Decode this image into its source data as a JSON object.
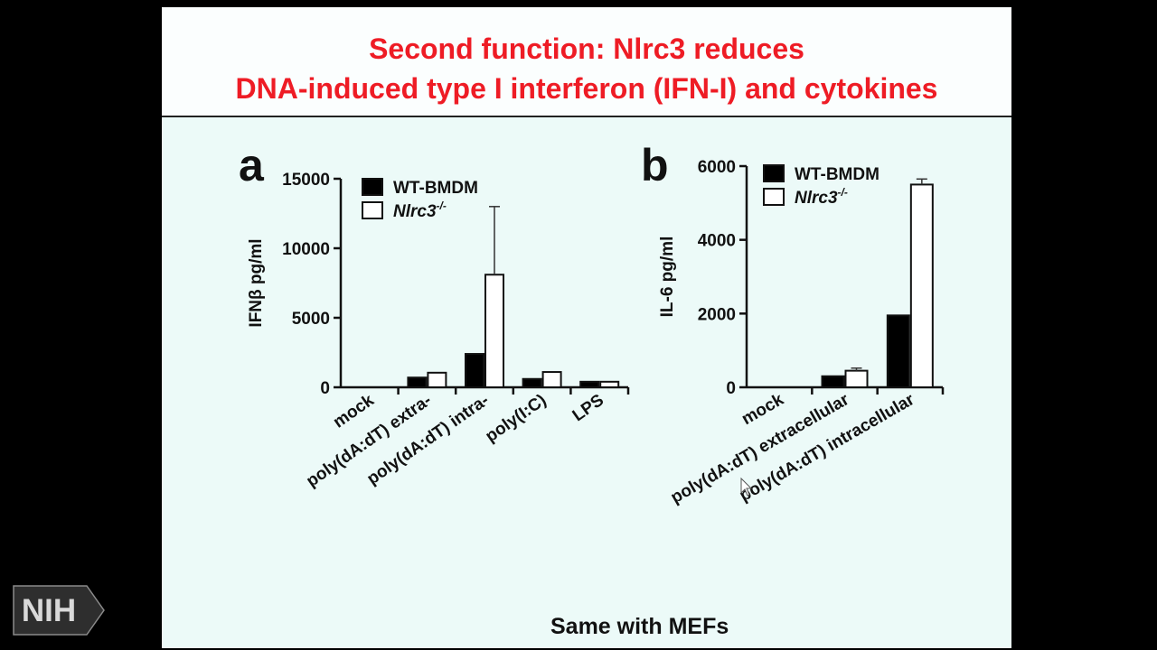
{
  "slide": {
    "title_line1": "Second function: Nlrc3 reduces",
    "title_line2": "DNA-induced type I interferon (IFN-I) and cytokines",
    "footer_note": "Same with MEFs",
    "title_color": "#ee1c25"
  },
  "logo": {
    "text": "NIH"
  },
  "chart_data": [
    {
      "panel_letter": "a",
      "type": "bar",
      "ylabel": "IFNβ pg/ml",
      "ylim": [
        0,
        15000
      ],
      "yticks": [
        "0",
        "5000",
        "10000",
        "15000"
      ],
      "categories": [
        "mock",
        "poly(dA:dT) extra-",
        "poly(dA:dT) intra-",
        "poly(I:C)",
        "LPS"
      ],
      "series": [
        {
          "name": "WT-BMDM",
          "color": "#000000",
          "values": [
            0,
            700,
            2400,
            600,
            400
          ],
          "errors": [
            0,
            0,
            0,
            0,
            0
          ]
        },
        {
          "name": "Nlrc3-/-",
          "color": "#ffffff",
          "values": [
            0,
            1050,
            8100,
            1100,
            400
          ],
          "errors": [
            0,
            0,
            4900,
            0,
            0
          ]
        }
      ],
      "legend": {
        "entries": [
          "WT-BMDM",
          "Nlrc3"
        ],
        "superscript": "-/-",
        "placement": "top-left"
      }
    },
    {
      "panel_letter": "b",
      "type": "bar",
      "ylabel": "IL-6 pg/ml",
      "ylim": [
        0,
        6000
      ],
      "yticks": [
        "0",
        "2000",
        "4000",
        "6000"
      ],
      "categories": [
        "mock",
        "poly(dA:dT) extracellular",
        "poly(dA:dT) intracellular"
      ],
      "series": [
        {
          "name": "WT-BMDM",
          "color": "#000000",
          "values": [
            0,
            300,
            1950
          ],
          "errors": [
            0,
            0,
            0
          ]
        },
        {
          "name": "Nlrc3-/-",
          "color": "#ffffff",
          "values": [
            0,
            450,
            5500
          ],
          "errors": [
            0,
            70,
            150
          ]
        }
      ],
      "legend": {
        "entries": [
          "WT-BMDM",
          "Nlrc3"
        ],
        "superscript": "-/-",
        "placement": "top-left"
      }
    }
  ]
}
